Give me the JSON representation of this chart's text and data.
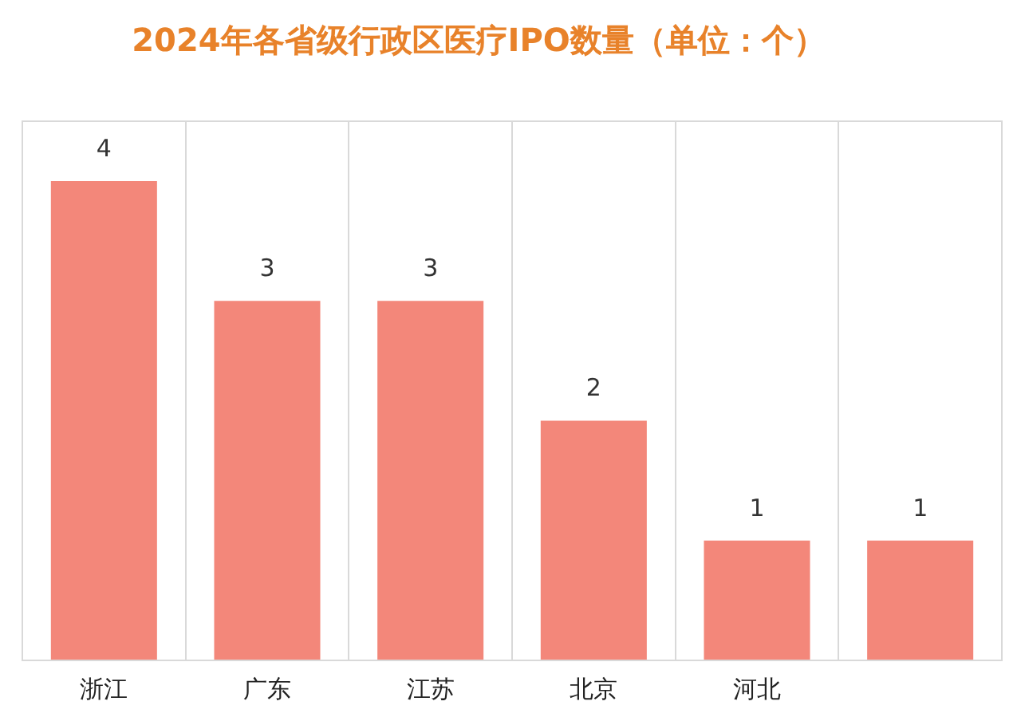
{
  "chart_data": {
    "type": "bar",
    "title": "2024年各省级行政区医疗IPO数量（单位：个）",
    "categories": [
      "浙江",
      "广东",
      "江苏",
      "北京",
      "河北",
      null
    ],
    "values": [
      4,
      3,
      3,
      2,
      1,
      1
    ],
    "color": "#f3877a",
    "data_labels": true,
    "grid": "x",
    "legend": false
  }
}
